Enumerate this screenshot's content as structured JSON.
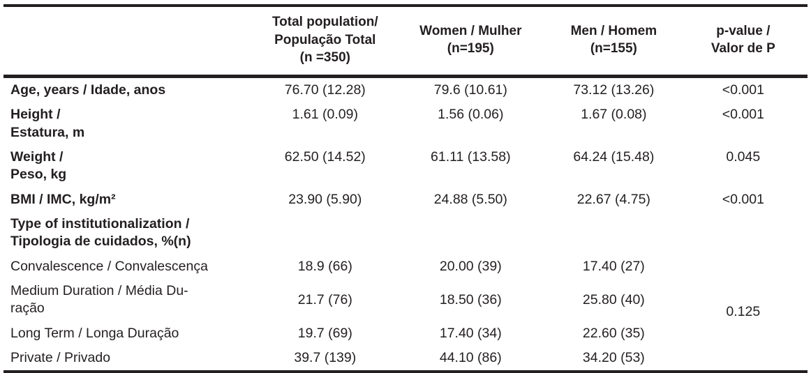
{
  "colors": {
    "text": "#231f20",
    "border": "#231f20",
    "background": "#ffffff"
  },
  "table": {
    "columns": [
      {
        "label": ""
      },
      {
        "label": "Total population/\nPopulação Total\n(n =350)"
      },
      {
        "label": "Women / Mulher\n(n=195)"
      },
      {
        "label": "Men / Homem\n(n=155)"
      },
      {
        "label": "p-value /\nValor de P"
      }
    ],
    "rows": [
      {
        "label": "Age, years / Idade, anos",
        "bold": true,
        "total": "76.70 (12.28)",
        "women": "79.6 (10.61)",
        "men": "73.12 (13.26)",
        "p": "<0.001"
      },
      {
        "label": "Height /\nEstatura, m",
        "bold": true,
        "total": "1.61 (0.09)",
        "women": "1.56 (0.06)",
        "men": "1.67 (0.08)",
        "p": "<0.001"
      },
      {
        "label": "Weight /\nPeso, kg",
        "bold": true,
        "total": "62.50 (14.52)",
        "women": "61.11 (13.58)",
        "men": "64.24 (15.48)",
        "p": "0.045"
      },
      {
        "label": "BMI / IMC, kg/m²",
        "bold": true,
        "total": "23.90 (5.90)",
        "women": "24.88 (5.50)",
        "men": "22.67 (4.75)",
        "p": "<0.001"
      },
      {
        "label": "Type of institutionalization /\nTipologia de cuidados, %(n)",
        "bold": true,
        "total": "",
        "women": "",
        "men": "",
        "p": ""
      },
      {
        "label": "Convalescence / Convalescença",
        "bold": false,
        "total": "18.9 (66)",
        "women": "20.00 (39)",
        "men": "17.40 (27)"
      },
      {
        "label": "Medium Duration / Média Du-\nração",
        "bold": false,
        "total": "21.7 (76)",
        "women": "18.50 (36)",
        "men": "25.80 (40)"
      },
      {
        "label": "Long Term / Longa Duração",
        "bold": false,
        "total": "19.7 (69)",
        "women": "17.40 (34)",
        "men": "22.60 (35)"
      },
      {
        "label": "Private / Privado",
        "bold": false,
        "total": "39.7 (139)",
        "women": "44.10 (86)",
        "men": "34.20 (53)"
      }
    ],
    "group_p_value": "0.125"
  }
}
